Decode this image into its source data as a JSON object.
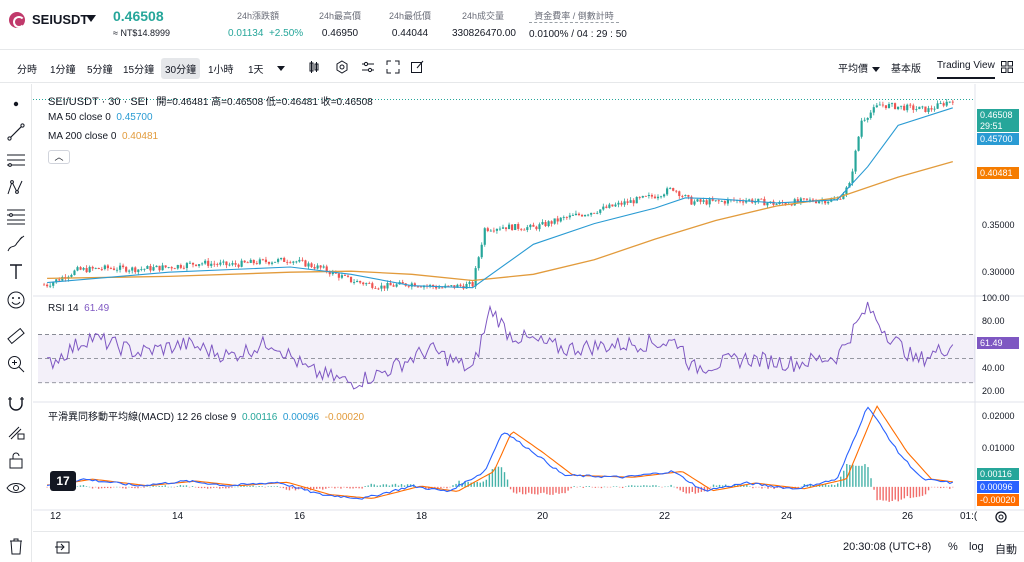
{
  "ticker": {
    "symbol": "SEIUSDT",
    "last_price": "0.46508",
    "last_price_ntd": "≈ NT$14.8999",
    "stats": [
      {
        "label": "24h漲跌額",
        "value": "0.01134",
        "extra": "+2.50%"
      },
      {
        "label": "24h最高價",
        "value": "0.46950"
      },
      {
        "label": "24h最低價",
        "value": "0.44044"
      },
      {
        "label": "24h成交量",
        "value": "330826470.00"
      },
      {
        "label": "資金費率 / 倒數計時",
        "value": "0.0100% / 04 : 29 : 50"
      }
    ]
  },
  "toolbar": {
    "timeframes": [
      "分時",
      "1分鐘",
      "5分鐘",
      "15分鐘",
      "30分鐘",
      "1小時",
      "1天"
    ],
    "active_timeframe": "30分鐘",
    "price_type": "平均價",
    "version_basic": "基本版",
    "version_tv": "Trading View"
  },
  "legend": {
    "pair": "SEI/USDT · 30 · SEI",
    "ohlc": "開=0.46481  高=0.46508  低=0.46481  收=0.46508",
    "ma50_label": "MA 50 close 0",
    "ma50_value": "0.45700",
    "ma200_label": "MA 200 close 0",
    "ma200_value": "0.40481",
    "rsi_label": "RSI 14",
    "rsi_value": "61.49",
    "macd_label": "平滑異同移動平均線(MACD)  12 26 close 9",
    "macd_v1": "0.00116",
    "macd_v2": "0.00096",
    "macd_v3": "-0.00020"
  },
  "price_axis": {
    "tags": {
      "price": "0.46508",
      "countdown": "29:51",
      "ma50": "0.45700",
      "ma200": "0.40481",
      "rsi": "61.49",
      "macd1": "0.00116",
      "macd2": "0.00096",
      "macd3": "-0.00020"
    },
    "price_ticks": [
      "0.35000",
      "0.30000"
    ],
    "rsi_ticks": [
      "100.00",
      "80.00",
      "60.00",
      "40.00",
      "20.00"
    ],
    "macd_ticks": [
      "0.02000",
      "0.01000",
      "0.00000"
    ]
  },
  "time_axis": [
    "12",
    "14",
    "16",
    "18",
    "20",
    "22",
    "24",
    "26",
    "01:("
  ],
  "footer": {
    "time": "20:30:08 (UTC+8)",
    "percent": "%",
    "log": "log",
    "auto": "自動"
  },
  "colors": {
    "up": "#26a69a",
    "down": "#ef5350",
    "ma50": "#2a9bd3",
    "ma200": "#e29b3c",
    "rsi": "#7e57c2",
    "macd_line": "#2962ff",
    "signal_line": "#ff6d00"
  },
  "chart_data": {
    "type": "candlestick",
    "x_ticks": [
      "12",
      "14",
      "16",
      "18",
      "20",
      "22",
      "24",
      "26"
    ],
    "price_series_approx": [
      [
        12,
        0.286
      ],
      [
        12.5,
        0.3
      ],
      [
        13,
        0.302
      ],
      [
        13.5,
        0.301
      ],
      [
        14,
        0.303
      ],
      [
        14.5,
        0.307
      ],
      [
        15,
        0.305
      ],
      [
        15.5,
        0.308
      ],
      [
        16,
        0.31
      ],
      [
        16.5,
        0.302
      ],
      [
        17,
        0.29
      ],
      [
        17.5,
        0.284
      ],
      [
        18,
        0.287
      ],
      [
        18.5,
        0.283
      ],
      [
        19,
        0.286
      ],
      [
        19.2,
        0.34
      ],
      [
        19.5,
        0.342
      ],
      [
        20,
        0.341
      ],
      [
        20.5,
        0.35
      ],
      [
        21,
        0.357
      ],
      [
        21.5,
        0.365
      ],
      [
        22,
        0.372
      ],
      [
        22.3,
        0.379
      ],
      [
        22.6,
        0.366
      ],
      [
        23,
        0.366
      ],
      [
        23.5,
        0.368
      ],
      [
        24,
        0.364
      ],
      [
        24.5,
        0.367
      ],
      [
        25,
        0.368
      ],
      [
        25.2,
        0.382
      ],
      [
        25.4,
        0.445
      ],
      [
        25.7,
        0.46
      ],
      [
        26,
        0.458
      ],
      [
        26.5,
        0.455
      ],
      [
        26.9,
        0.465
      ]
    ],
    "ma50_approx": [
      [
        12,
        0.288
      ],
      [
        14,
        0.298
      ],
      [
        16,
        0.303
      ],
      [
        17,
        0.296
      ],
      [
        18,
        0.285
      ],
      [
        19,
        0.283
      ],
      [
        20,
        0.325
      ],
      [
        21,
        0.345
      ],
      [
        22,
        0.36
      ],
      [
        22.5,
        0.37
      ],
      [
        23,
        0.369
      ],
      [
        24,
        0.365
      ],
      [
        25,
        0.368
      ],
      [
        25.5,
        0.4
      ],
      [
        26,
        0.44
      ],
      [
        26.9,
        0.457
      ]
    ],
    "ma200_approx": [
      [
        12,
        0.292
      ],
      [
        14,
        0.294
      ],
      [
        16,
        0.298
      ],
      [
        17,
        0.299
      ],
      [
        18,
        0.296
      ],
      [
        19,
        0.29
      ],
      [
        20,
        0.296
      ],
      [
        21,
        0.31
      ],
      [
        22,
        0.33
      ],
      [
        23,
        0.348
      ],
      [
        24,
        0.362
      ],
      [
        25,
        0.37
      ],
      [
        26,
        0.39
      ],
      [
        26.9,
        0.405
      ]
    ],
    "rsi_ylim": [
      20,
      100
    ],
    "macd_ylim": [
      -0.006,
      0.022
    ]
  }
}
